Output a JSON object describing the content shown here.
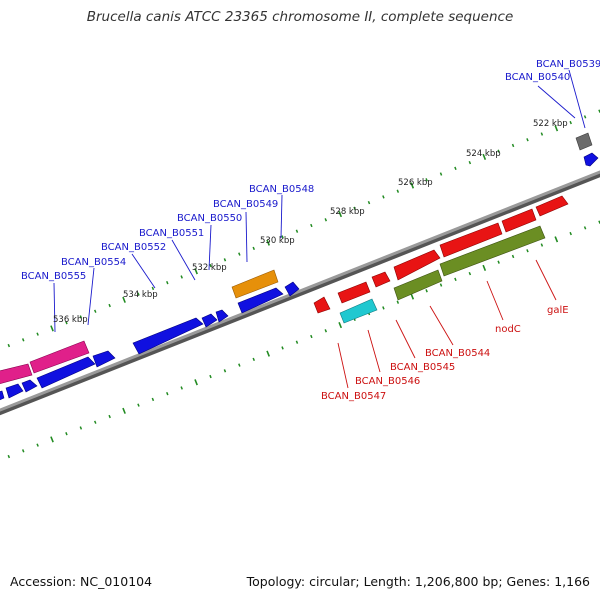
{
  "title": "Brucella canis ATCC 23365 chromosome II, complete sequence",
  "footer": {
    "accession": "Accession: NC_010104",
    "summary": "Topology: circular; Length: 1,206,800 bp; Genes: 1,166"
  },
  "colors": {
    "backbone": "#808080",
    "tick": "#228b22",
    "label_top": "#1a1acc",
    "label_bottom": "#cc1111",
    "blue": "#1010e0",
    "pink": "#e0208a",
    "orange": "#e6900a",
    "gray": "#6b6b6b",
    "red": "#e81414",
    "olive": "#6b8e23",
    "cyan": "#20c8d0"
  },
  "scale_labels": [
    "522 kbp",
    "524 kbp",
    "526 kbp",
    "528 kbp",
    "530 kbp",
    "532 kbp",
    "534 kbp",
    "536 kbp"
  ],
  "top_labels": [
    "BCAN_B0539",
    "BCAN_B0540",
    "BCAN_B0548",
    "BCAN_B0549",
    "BCAN_B0550",
    "BCAN_B0551",
    "BCAN_B0552",
    "BCAN_B0554",
    "BCAN_B0555"
  ],
  "bottom_labels": [
    "galE",
    "nodC",
    "BCAN_B0544",
    "BCAN_B0545",
    "BCAN_B0546",
    "BCAN_B0547"
  ]
}
